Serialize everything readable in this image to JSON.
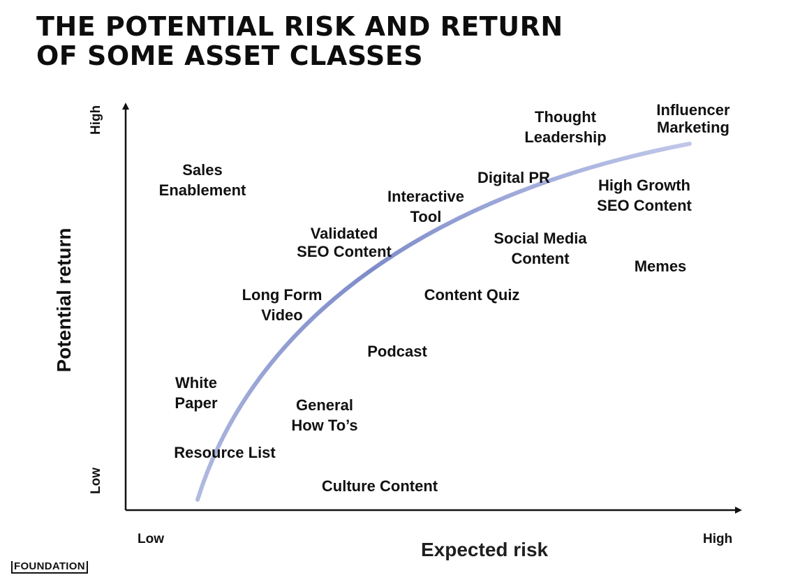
{
  "title": {
    "line1": "THE POTENTIAL RISK AND RETURN",
    "line2": "OF SOME ASSET CLASSES"
  },
  "axes": {
    "y_title": "Potential return",
    "y_high": "High",
    "y_low": "Low",
    "x_title": "Expected risk",
    "x_low": "Low",
    "x_high": "High"
  },
  "items": [
    {
      "id": "sales-enablement",
      "lines": [
        "Sales",
        "Enablement"
      ]
    },
    {
      "id": "thought-leadership",
      "lines": [
        "Thought",
        "Leadership"
      ]
    },
    {
      "id": "influencer-marketing",
      "lines": [
        "Influencer",
        "Marketing"
      ]
    },
    {
      "id": "digital-pr",
      "lines": [
        "Digital PR"
      ]
    },
    {
      "id": "interactive-tool",
      "lines": [
        "Interactive",
        "Tool"
      ]
    },
    {
      "id": "high-growth-seo",
      "lines": [
        "High Growth",
        "SEO Content"
      ]
    },
    {
      "id": "validated-seo",
      "lines": [
        "Validated",
        "SEO Content"
      ]
    },
    {
      "id": "social-media",
      "lines": [
        "Social Media",
        "Content"
      ]
    },
    {
      "id": "memes",
      "lines": [
        "Memes"
      ]
    },
    {
      "id": "long-form-video",
      "lines": [
        "Long Form",
        "Video"
      ]
    },
    {
      "id": "content-quiz",
      "lines": [
        "Content Quiz"
      ]
    },
    {
      "id": "podcast",
      "lines": [
        "Podcast"
      ]
    },
    {
      "id": "white-paper",
      "lines": [
        "White",
        "Paper"
      ]
    },
    {
      "id": "general-how-tos",
      "lines": [
        "General",
        "How To’s"
      ]
    },
    {
      "id": "resource-list",
      "lines": [
        "Resource List"
      ]
    },
    {
      "id": "culture-content",
      "lines": [
        "Culture Content"
      ]
    }
  ],
  "brand": {
    "logo_text": "FOUNDATION"
  },
  "colors": {
    "curve": "#6f7fc4",
    "axis": "#111111",
    "text": "#111111"
  }
}
